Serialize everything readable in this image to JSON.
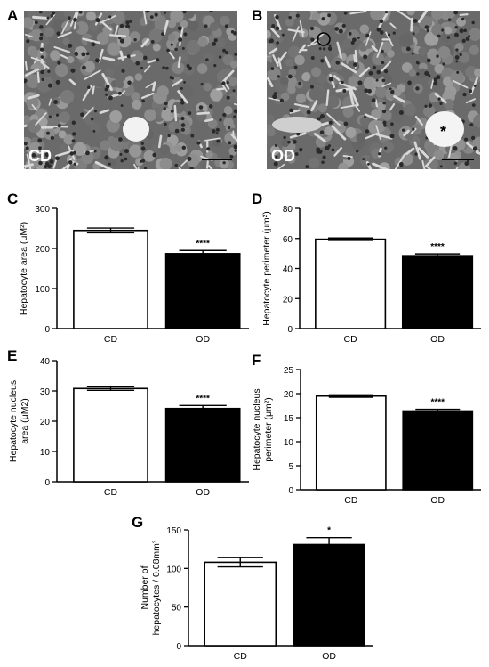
{
  "panels": {
    "A": {
      "letter": "A",
      "label": "CD"
    },
    "B": {
      "letter": "B",
      "label": "OD",
      "lumen_mark": "*"
    }
  },
  "chart_data": [
    {
      "id": "C",
      "letter": "C",
      "type": "bar",
      "categories": [
        "CD",
        "OD"
      ],
      "values": [
        245,
        187
      ],
      "errors": [
        6,
        8
      ],
      "significance": [
        "",
        "****"
      ],
      "ylabel": "Hepatocyte area (μM²)",
      "ylim": [
        0,
        300
      ],
      "yticks": [
        0,
        100,
        200,
        300
      ],
      "colors": [
        "#ffffff",
        "#000000"
      ]
    },
    {
      "id": "D",
      "letter": "D",
      "type": "bar",
      "categories": [
        "CD",
        "OD"
      ],
      "values": [
        59.5,
        48.5
      ],
      "errors": [
        0.8,
        1.2
      ],
      "significance": [
        "",
        "****"
      ],
      "ylabel": "Hepatocyte perimeter (μm²)",
      "ylim": [
        0,
        80
      ],
      "yticks": [
        0,
        20,
        40,
        60,
        80
      ],
      "colors": [
        "#ffffff",
        "#000000"
      ]
    },
    {
      "id": "E",
      "letter": "E",
      "type": "bar",
      "categories": [
        "CD",
        "OD"
      ],
      "values": [
        30.8,
        24.2
      ],
      "errors": [
        0.6,
        1.0
      ],
      "significance": [
        "",
        "****"
      ],
      "ylabel": [
        "Hepatocyte nucleus",
        "area (μM2)"
      ],
      "ylim": [
        0,
        40
      ],
      "yticks": [
        0,
        10,
        20,
        30,
        40
      ],
      "colors": [
        "#ffffff",
        "#000000"
      ]
    },
    {
      "id": "F",
      "letter": "F",
      "type": "bar",
      "categories": [
        "CD",
        "OD"
      ],
      "values": [
        19.5,
        16.4
      ],
      "errors": [
        0.25,
        0.35
      ],
      "significance": [
        "",
        "****"
      ],
      "ylabel": [
        "Hepatocyte nucleus",
        "perimeter (μm²)"
      ],
      "ylim": [
        0,
        25
      ],
      "yticks": [
        0,
        5,
        10,
        15,
        20,
        25
      ],
      "colors": [
        "#ffffff",
        "#000000"
      ]
    },
    {
      "id": "G",
      "letter": "G",
      "type": "bar",
      "categories": [
        "CD",
        "OD"
      ],
      "values": [
        108,
        131
      ],
      "errors": [
        6,
        9
      ],
      "significance": [
        "",
        "*"
      ],
      "ylabel": [
        "Number of",
        "hepatocytes / 0.08mm³"
      ],
      "ylim": [
        0,
        150
      ],
      "yticks": [
        0,
        50,
        100,
        150
      ],
      "colors": [
        "#ffffff",
        "#000000"
      ]
    }
  ]
}
